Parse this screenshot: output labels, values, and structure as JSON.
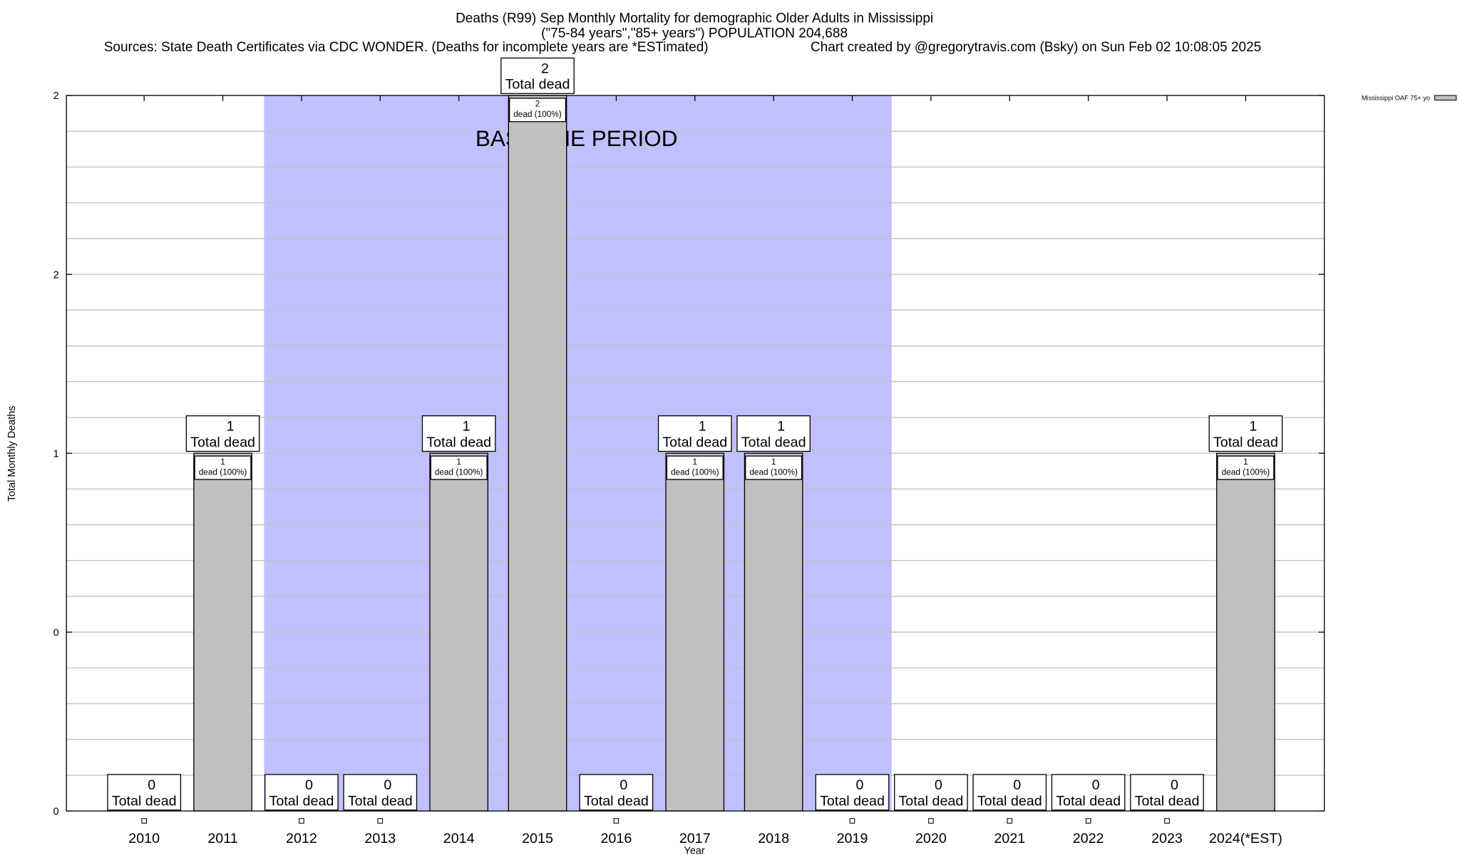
{
  "chart_data": {
    "type": "bar",
    "title": "Deaths (R99) Sep Monthly Mortality for demographic Older Adults in Mississippi",
    "subtitle": "(\"75-84 years\",\"85+ years\") POPULATION 204,688",
    "sources": "Sources: State Death Certificates via CDC WONDER. (Deaths for incomplete years are *ESTimated)",
    "credit": "Chart created by @gregorytravis.com (Bsky) on Sun Feb 02 10:08:05 2025",
    "xlabel": "Year",
    "ylabel": "Total Monthly Deaths",
    "categories": [
      "2010",
      "2011",
      "2012",
      "2013",
      "2014",
      "2015",
      "2016",
      "2017",
      "2018",
      "2019",
      "2020",
      "2021",
      "2022",
      "2023",
      "2024(*EST)"
    ],
    "series": [
      {
        "name": "Mississippi OAF 75+ yo",
        "values": [
          0,
          1,
          0,
          0,
          1,
          2,
          0,
          1,
          1,
          0,
          0,
          0,
          0,
          0,
          1
        ],
        "color": "#c0c0c0"
      }
    ],
    "total_label": "Total dead",
    "bar_label": "dead (100%)",
    "ylim": [
      0,
      2
    ],
    "y_ticks": [
      0,
      0.5,
      1,
      1.5,
      2
    ],
    "y_tick_labels": [
      "0",
      "0",
      "1",
      "2",
      "2"
    ],
    "grid": true,
    "legend_position": "top-right, outside",
    "baseline_period": {
      "label": "BASELINE PERIOD",
      "from": "2012",
      "to": "2019",
      "color": "#c0c0ff"
    }
  }
}
